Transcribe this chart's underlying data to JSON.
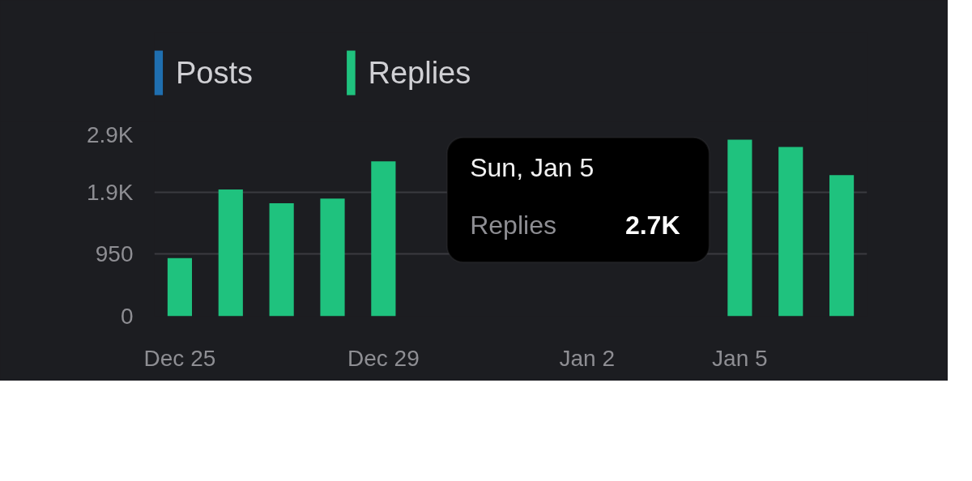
{
  "chart_data": {
    "type": "bar",
    "categories": [
      "Dec 25",
      null,
      null,
      null,
      "Dec 29",
      null,
      null,
      null,
      "Jan 2",
      null,
      null,
      "Jan 5",
      null,
      null
    ],
    "series": [
      {
        "name": "Posts",
        "color": "#1f6fb0",
        "values": [
          null,
          null,
          null,
          null,
          null,
          null,
          null,
          null,
          null,
          null,
          null,
          null,
          null,
          null
        ]
      },
      {
        "name": "Replies",
        "color": "#1fc27e",
        "values": [
          890,
          1940,
          1730,
          1800,
          2370,
          null,
          null,
          null,
          null,
          null,
          null,
          2700,
          2590,
          2160
        ]
      }
    ],
    "ylim": [
      0,
      2850
    ],
    "yticks": [
      0,
      {
        "value": 950,
        "label": "950"
      },
      {
        "value": 1900,
        "label": "1.9K"
      },
      {
        "value": 2850,
        "label": "2.9K"
      }
    ],
    "grid": "y",
    "legend": "top left",
    "annotations": [
      "Sun, Jan 5",
      "Replies",
      "2.7K"
    ]
  }
}
